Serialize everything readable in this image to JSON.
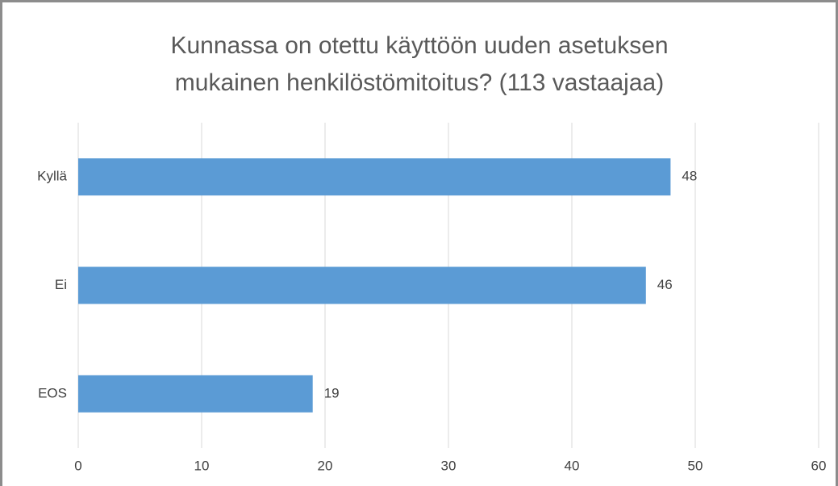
{
  "chart_data": {
    "type": "bar",
    "orientation": "horizontal",
    "title": "Kunnassa on otettu käyttöön uuden asetuksen mukainen henkilöstömitoitus? (113 vastaajaa)",
    "categories": [
      "Kyllä",
      "Ei",
      "EOS"
    ],
    "values": [
      48,
      46,
      19
    ],
    "color": "#5b9bd5",
    "xlim": [
      0,
      60
    ],
    "xticks": [
      0,
      10,
      20,
      30,
      40,
      50,
      60
    ],
    "grid": true
  }
}
